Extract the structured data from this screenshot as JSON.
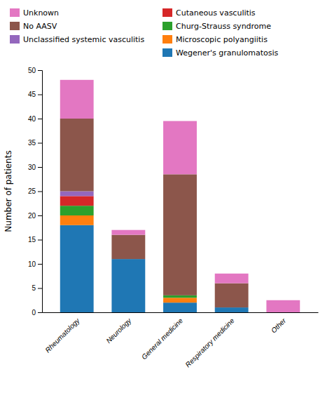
{
  "chart_data": {
    "type": "bar",
    "stacked": true,
    "categories": [
      "Rheumatology",
      "Neurology",
      "General medicine",
      "Respiratory medicine",
      "Other"
    ],
    "series": [
      {
        "name": "Wegener's granulomatosis",
        "values": [
          18,
          11,
          2,
          1,
          0
        ]
      },
      {
        "name": "Microscopic polyangiitis",
        "values": [
          2,
          0,
          1,
          0,
          0
        ]
      },
      {
        "name": "Churg-Strauss syndrome",
        "values": [
          2,
          0,
          0.5,
          0,
          0
        ]
      },
      {
        "name": "Cutaneous vasculitis",
        "values": [
          2,
          0,
          0,
          0,
          0
        ]
      },
      {
        "name": "Unclassified systemic vasculitis",
        "values": [
          1,
          0,
          0,
          0,
          0
        ]
      },
      {
        "name": "No AASV",
        "values": [
          15,
          5,
          25,
          5,
          0
        ]
      },
      {
        "name": "Unknown",
        "values": [
          8,
          1,
          11,
          2,
          2.5
        ]
      }
    ],
    "ylabel": "Number of patients",
    "ylim": [
      0,
      50
    ],
    "yticks": [
      0,
      5,
      10,
      15,
      20,
      25,
      30,
      35,
      40,
      45,
      50
    ],
    "grid": false
  }
}
